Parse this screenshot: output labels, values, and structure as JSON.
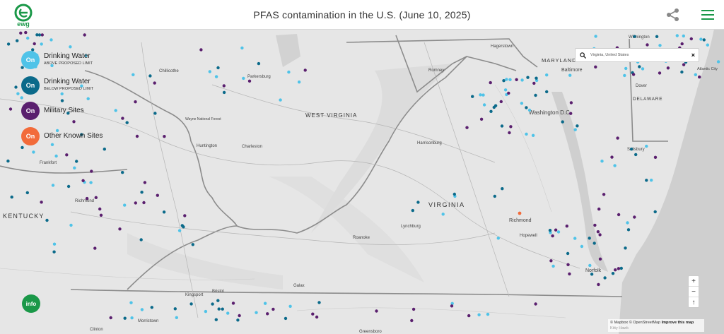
{
  "header": {
    "title": "PFAS contamination in the U.S. (June 10, 2025)",
    "logo_text": "ewg",
    "logo_icon": "ewg-logo-icon",
    "share_icon": "share-icon",
    "menu_icon": "hamburger-menu-icon"
  },
  "legend": [
    {
      "toggle": "On",
      "label": "Drinking Water",
      "sublabel": "ABOVE PROPOSED LIMIT",
      "color": "#4fc3e8"
    },
    {
      "toggle": "On",
      "label": "Drinking Water",
      "sublabel": "BELOW PROPOSED LIMIT",
      "color": "#0b6a8a"
    },
    {
      "toggle": "On",
      "label": "Military Sites",
      "sublabel": "",
      "color": "#5a1f6e"
    },
    {
      "toggle": "On",
      "label": "Other Known Sites",
      "sublabel": "",
      "color": "#f26b3a"
    }
  ],
  "search": {
    "value": "Virginia, United States",
    "search_icon": "search-icon",
    "close_label": "×"
  },
  "zoom": {
    "in": "+",
    "out": "−",
    "compass": "↑"
  },
  "info_label": "info",
  "attribution": {
    "mapbox": "© Mapbox",
    "osm": "© OpenStreetMap",
    "improve": "Improve this map",
    "extra": "Kitty Hawk"
  },
  "map_labels": {
    "states": [
      "KENTUCKY",
      "WEST VIRGINIA",
      "VIRGINIA",
      "MARYLAND",
      "DELAWARE"
    ],
    "cities": [
      "Frankfort",
      "Richmond",
      "Chillicothe",
      "Parkersburg",
      "Wayne National Forest",
      "Huntington",
      "Charleston",
      "Hagerstown",
      "Romney",
      "Harrisonburg",
      "Baltimore",
      "Washington D.C.",
      "Dover",
      "Salisbury",
      "Wilmington",
      "Atlantic City",
      "Richmond",
      "Hopewell",
      "Lynchburg",
      "Roanoke",
      "Norfolk",
      "Bristol",
      "Kingsport",
      "Galax",
      "Morristown",
      "Clinton",
      "Greensboro"
    ]
  }
}
